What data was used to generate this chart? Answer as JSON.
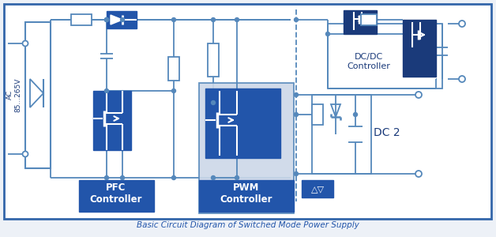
{
  "bg_color": "#ffffff",
  "outer_bg": "#edf1f7",
  "border_color": "#3366aa",
  "line_color": "#5588bb",
  "dark_blue": "#1a3a7a",
  "mid_blue": "#2255aa",
  "light_blue_box": "#ccd8e8",
  "ac_label": "AC\n85...265V",
  "pfc_label": "PFC\nController",
  "pwm_label": "PWM\nController",
  "dcdc_label": "DC/DC\nController",
  "dc2_label": "DC 2",
  "caption": "Basic Circuit Diagram of Switched Mode Power Supply"
}
